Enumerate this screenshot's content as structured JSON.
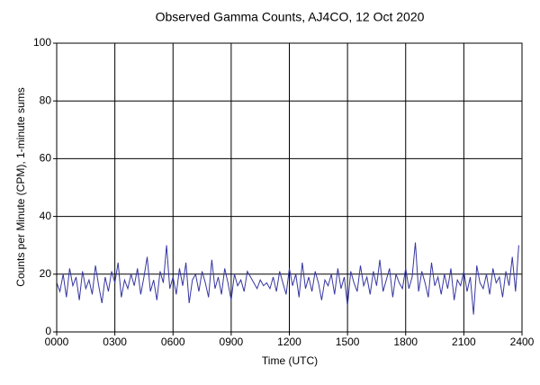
{
  "chart_data": {
    "type": "line",
    "title": "Observed Gamma Counts, AJ4CO, 12 Oct 2020",
    "x_label": "Time (UTC)",
    "y_label": "Counts per Minute (CPM), 1-minute sums",
    "xlim": [
      0,
      1440
    ],
    "ylim": [
      0,
      100
    ],
    "xticks": [
      {
        "value": 0,
        "label": "0000"
      },
      {
        "value": 180,
        "label": "0300"
      },
      {
        "value": 360,
        "label": "0600"
      },
      {
        "value": 540,
        "label": "0900"
      },
      {
        "value": 720,
        "label": "1200"
      },
      {
        "value": 900,
        "label": "1500"
      },
      {
        "value": 1080,
        "label": "1800"
      },
      {
        "value": 1260,
        "label": "2100"
      },
      {
        "value": 1440,
        "label": "2400"
      }
    ],
    "yticks": [
      0,
      20,
      40,
      60,
      80,
      100
    ],
    "grid": true,
    "x": [
      0,
      10,
      20,
      30,
      40,
      50,
      60,
      70,
      80,
      90,
      100,
      110,
      120,
      130,
      140,
      150,
      160,
      170,
      180,
      190,
      200,
      210,
      220,
      230,
      240,
      250,
      260,
      270,
      280,
      290,
      300,
      310,
      320,
      330,
      340,
      350,
      360,
      370,
      380,
      390,
      400,
      410,
      420,
      430,
      440,
      450,
      460,
      470,
      480,
      490,
      500,
      510,
      520,
      530,
      540,
      550,
      560,
      570,
      580,
      590,
      600,
      610,
      620,
      630,
      640,
      650,
      660,
      670,
      680,
      690,
      700,
      710,
      720,
      730,
      740,
      750,
      760,
      770,
      780,
      790,
      800,
      810,
      820,
      830,
      840,
      850,
      860,
      870,
      880,
      890,
      900,
      910,
      920,
      930,
      940,
      950,
      960,
      970,
      980,
      990,
      1000,
      1010,
      1020,
      1030,
      1040,
      1050,
      1060,
      1070,
      1080,
      1090,
      1100,
      1110,
      1120,
      1130,
      1140,
      1150,
      1160,
      1170,
      1180,
      1190,
      1200,
      1210,
      1220,
      1230,
      1240,
      1250,
      1260,
      1270,
      1280,
      1290,
      1300,
      1310,
      1320,
      1330,
      1340,
      1350,
      1360,
      1370,
      1380,
      1390,
      1400,
      1410,
      1420,
      1430
    ],
    "series": [
      {
        "color": "#3636a2",
        "values": [
          17,
          14,
          20,
          12,
          22,
          16,
          19,
          11,
          21,
          15,
          18,
          13,
          23,
          16,
          10,
          19,
          14,
          21,
          17,
          24,
          12,
          18,
          15,
          20,
          16,
          22,
          13,
          19,
          26,
          14,
          18,
          11,
          21,
          17,
          30,
          15,
          19,
          13,
          22,
          16,
          24,
          10,
          18,
          20,
          14,
          21,
          17,
          12,
          25,
          15,
          19,
          13,
          22,
          17,
          11,
          20,
          16,
          18,
          14,
          21,
          19,
          17,
          15,
          18,
          16,
          17,
          15,
          19,
          14,
          21,
          17,
          13,
          22,
          16,
          20,
          12,
          24,
          15,
          19,
          14,
          21,
          17,
          11,
          18,
          16,
          20,
          13,
          22,
          15,
          19,
          9,
          21,
          17,
          14,
          23,
          16,
          19,
          13,
          21,
          16,
          25,
          14,
          18,
          22,
          12,
          20,
          17,
          15,
          22,
          15,
          19,
          31,
          14,
          21,
          17,
          12,
          24,
          16,
          19,
          13,
          20,
          15,
          22,
          11,
          18,
          16,
          21,
          14,
          19,
          6,
          23,
          17,
          15,
          20,
          13,
          22,
          17,
          19,
          12,
          21,
          16,
          26,
          14,
          30
        ]
      }
    ]
  }
}
